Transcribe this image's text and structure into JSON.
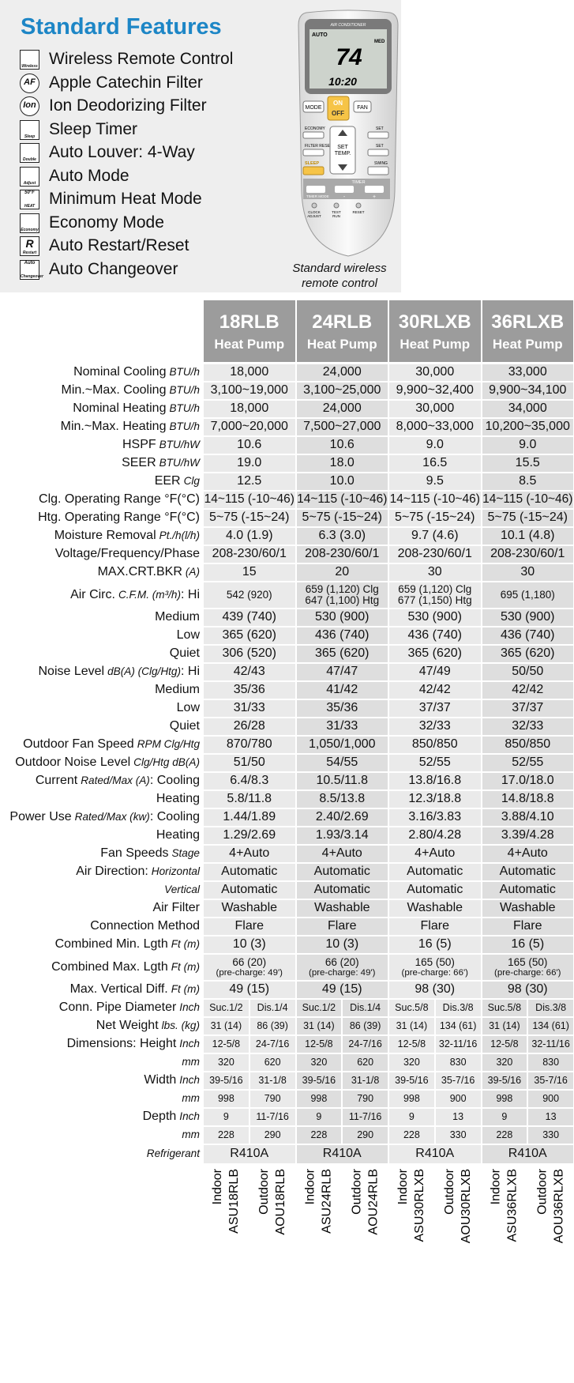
{
  "features": {
    "title": "Standard Features",
    "items": [
      {
        "label": "Wireless Remote Control",
        "icon": [
          "Wireless"
        ]
      },
      {
        "label": "Apple Catechin Filter",
        "icon": [
          "AF"
        ]
      },
      {
        "label": "Ion Deodorizing Filter",
        "icon": [
          "Ion"
        ]
      },
      {
        "label": "Sleep Timer",
        "icon": [
          "Sleep"
        ]
      },
      {
        "label": "Auto Louver: 4-Way",
        "icon": [
          "Double"
        ]
      },
      {
        "label": "Auto Mode",
        "icon": [
          "Adjust"
        ]
      },
      {
        "label": "Minimum Heat Mode",
        "icon": [
          "50°F",
          "HEAT"
        ]
      },
      {
        "label": "Economy Mode",
        "icon": [
          "Economy"
        ]
      },
      {
        "label": "Auto Restart/Reset",
        "icon": [
          "R",
          "Restart"
        ]
      },
      {
        "label": "Auto Changeover",
        "icon": [
          "Auto",
          "Changeover"
        ]
      }
    ]
  },
  "remote": {
    "brand": "AIR CONDITIONER",
    "display": {
      "mode": "AUTO",
      "temp": "74",
      "fan": "MED",
      "time": "10:20"
    },
    "mode": "MODE",
    "on": "ON",
    "off": "OFF",
    "fan": "FAN",
    "economy": "ECONOMY",
    "set1": "SET",
    "filter": "FILTER RESET",
    "set2": "SET",
    "settemp": [
      "SET",
      "TEMP."
    ],
    "sleep": "SLEEP",
    "swing": "SWING",
    "timer": "TIMER",
    "timermode": "TIMER MODE",
    "minus": "-",
    "plus": "+",
    "clock": [
      "CLOCK",
      "ADJUST"
    ],
    "test": [
      "TEST",
      "RUN"
    ],
    "reset": "RESET",
    "caption": [
      "Standard wireless",
      "remote control"
    ]
  },
  "table": {
    "models": [
      {
        "name": "18RLB",
        "type": "Heat Pump"
      },
      {
        "name": "24RLB",
        "type": "Heat Pump"
      },
      {
        "name": "30RLXB",
        "type": "Heat Pump"
      },
      {
        "name": "36RLXB",
        "type": "Heat Pump"
      }
    ],
    "rows": [
      {
        "label": "Nominal Cooling",
        "unit": "BTU/h",
        "values": [
          "18,000",
          "24,000",
          "30,000",
          "33,000"
        ]
      },
      {
        "label": "Min.~Max. Cooling",
        "unit": "BTU/h",
        "values": [
          "3,100~19,000",
          "3,100~25,000",
          "9,900~32,400",
          "9,900~34,100"
        ]
      },
      {
        "label": "Nominal Heating",
        "unit": "BTU/h",
        "values": [
          "18,000",
          "24,000",
          "30,000",
          "34,000"
        ]
      },
      {
        "label": "Min.~Max. Heating",
        "unit": "BTU/h",
        "values": [
          "7,000~20,000",
          "7,500~27,000",
          "8,000~33,000",
          "10,200~35,000"
        ]
      },
      {
        "label": "HSPF",
        "unit": "BTU/hW",
        "values": [
          "10.6",
          "10.6",
          "9.0",
          "9.0"
        ]
      },
      {
        "label": "SEER",
        "unit": "BTU/hW",
        "values": [
          "19.0",
          "18.0",
          "16.5",
          "15.5"
        ]
      },
      {
        "label": "EER",
        "unit": "Clg",
        "values": [
          "12.5",
          "10.0",
          "9.5",
          "8.5"
        ]
      },
      {
        "label": "Clg. Operating Range °F(°C)",
        "values": [
          "14~115 (-10~46)",
          "14~115 (-10~46)",
          "14~115 (-10~46)",
          "14~115 (-10~46)"
        ]
      },
      {
        "label": "Htg. Operating Range °F(°C)",
        "values": [
          "5~75 (-15~24)",
          "5~75 (-15~24)",
          "5~75 (-15~24)",
          "5~75 (-15~24)"
        ]
      },
      {
        "label": "Moisture Removal",
        "unit": "Pt./h(l/h)",
        "values": [
          "4.0 (1.9)",
          "6.3 (3.0)",
          "9.7 (4.6)",
          "10.1 (4.8)"
        ]
      },
      {
        "label": "Voltage/Frequency/Phase",
        "values": [
          "208-230/60/1",
          "208-230/60/1",
          "208-230/60/1",
          "208-230/60/1"
        ]
      },
      {
        "label": "MAX.CRT.BKR",
        "unit": "(A)",
        "values": [
          "15",
          "20",
          "30",
          "30"
        ]
      },
      {
        "label": "Air Circ.",
        "unit": "C.F.M. (m³/h)",
        "tail": ": Hi",
        "values": [
          "542 (920)",
          [
            "659 (1,120) Clg",
            "647 (1,100) Htg"
          ],
          [
            "659 (1,120) Clg",
            "677 (1,150) Htg"
          ],
          "695 (1,180)"
        ]
      },
      {
        "label": "Medium",
        "values": [
          "439 (740)",
          "530 (900)",
          "530 (900)",
          "530 (900)"
        ]
      },
      {
        "label": "Low",
        "values": [
          "365 (620)",
          "436 (740)",
          "436 (740)",
          "436 (740)"
        ]
      },
      {
        "label": "Quiet",
        "values": [
          "306 (520)",
          "365 (620)",
          "365 (620)",
          "365 (620)"
        ]
      },
      {
        "label": "Noise Level",
        "unit": "dB(A) (Clg/Htg)",
        "tail": ": Hi",
        "values": [
          "42/43",
          "47/47",
          "47/49",
          "50/50"
        ]
      },
      {
        "label": "Medium",
        "values": [
          "35/36",
          "41/42",
          "42/42",
          "42/42"
        ]
      },
      {
        "label": "Low",
        "values": [
          "31/33",
          "35/36",
          "37/37",
          "37/37"
        ]
      },
      {
        "label": "Quiet",
        "values": [
          "26/28",
          "31/33",
          "32/33",
          "32/33"
        ]
      },
      {
        "label": "Outdoor Fan Speed",
        "unit": "RPM Clg/Htg",
        "values": [
          "870/780",
          "1,050/1,000",
          "850/850",
          "850/850"
        ]
      },
      {
        "label": "Outdoor Noise Level",
        "unit": "Clg/Htg dB(A)",
        "values": [
          "51/50",
          "54/55",
          "52/55",
          "52/55"
        ]
      },
      {
        "label": "Current",
        "unit": "Rated/Max (A)",
        "tail": ": Cooling",
        "values": [
          "6.4/8.3",
          "10.5/11.8",
          "13.8/16.8",
          "17.0/18.0"
        ]
      },
      {
        "label": "Heating",
        "values": [
          "5.8/11.8",
          "8.5/13.8",
          "12.3/18.8",
          "14.8/18.8"
        ]
      },
      {
        "label": "Power Use",
        "unit": "Rated/Max (kw)",
        "tail": ": Cooling",
        "values": [
          "1.44/1.89",
          "2.40/2.69",
          "3.16/3.83",
          "3.88/4.10"
        ]
      },
      {
        "label": "Heating",
        "values": [
          "1.29/2.69",
          "1.93/3.14",
          "2.80/4.28",
          "3.39/4.28"
        ]
      },
      {
        "label": "Fan Speeds",
        "unit": "Stage",
        "values": [
          "4+Auto",
          "4+Auto",
          "4+Auto",
          "4+Auto"
        ]
      },
      {
        "label": "Air Direction:",
        "unit": "Horizontal",
        "values": [
          "Automatic",
          "Automatic",
          "Automatic",
          "Automatic"
        ]
      },
      {
        "unit": "Vertical",
        "values": [
          "Automatic",
          "Automatic",
          "Automatic",
          "Automatic"
        ]
      },
      {
        "label": "Air Filter",
        "values": [
          "Washable",
          "Washable",
          "Washable",
          "Washable"
        ]
      },
      {
        "label": "Connection Method",
        "values": [
          "Flare",
          "Flare",
          "Flare",
          "Flare"
        ]
      },
      {
        "label": "Combined Min. Lgth",
        "unit": "Ft (m)",
        "values": [
          "10 (3)",
          "10 (3)",
          "16 (5)",
          "16 (5)"
        ]
      },
      {
        "label": "Combined Max. Lgth",
        "unit": "Ft (m)",
        "values": [
          [
            "66 (20)",
            "(pre-charge: 49')"
          ],
          [
            "66 (20)",
            "(pre-charge: 49')"
          ],
          [
            "165 (50)",
            "(pre-charge: 66')"
          ],
          [
            "165 (50)",
            "(pre-charge: 66')"
          ]
        ]
      },
      {
        "label": "Max. Vertical Diff.",
        "unit": "Ft (m)",
        "values": [
          "49 (15)",
          "49 (15)",
          "98 (30)",
          "98 (30)"
        ]
      },
      {
        "label": "Conn. Pipe Diameter",
        "unit": "Inch",
        "values": [
          "Suc.1/2",
          "Dis.1/4",
          "Suc.1/2",
          "Dis.1/4",
          "Suc.5/8",
          "Dis.3/8",
          "Suc.5/8",
          "Dis.3/8"
        ]
      },
      {
        "label": "Net Weight",
        "unit": "lbs. (kg)",
        "values": [
          "31 (14)",
          "86 (39)",
          "31 (14)",
          "86 (39)",
          "31 (14)",
          "134 (61)",
          "31 (14)",
          "134 (61)"
        ]
      },
      {
        "label": "Dimensions: Height",
        "unit": "Inch",
        "values": [
          "12-5/8",
          "24-7/16",
          "12-5/8",
          "24-7/16",
          "12-5/8",
          "32-11/16",
          "12-5/8",
          "32-11/16"
        ]
      },
      {
        "unit": "mm",
        "values": [
          "320",
          "620",
          "320",
          "620",
          "320",
          "830",
          "320",
          "830"
        ]
      },
      {
        "label": "Width",
        "unit": "Inch",
        "values": [
          "39-5/16",
          "31-1/8",
          "39-5/16",
          "31-1/8",
          "39-5/16",
          "35-7/16",
          "39-5/16",
          "35-7/16"
        ]
      },
      {
        "unit": "mm",
        "values": [
          "998",
          "790",
          "998",
          "790",
          "998",
          "900",
          "998",
          "900"
        ]
      },
      {
        "label": "Depth",
        "unit": "Inch",
        "values": [
          "9",
          "11-7/16",
          "9",
          "11-7/16",
          "9",
          "13",
          "9",
          "13"
        ]
      },
      {
        "unit": "mm",
        "values": [
          "228",
          "290",
          "228",
          "290",
          "228",
          "330",
          "228",
          "330"
        ]
      },
      {
        "unit": "Refrigerant",
        "values": [
          "R410A",
          "R410A",
          "R410A",
          "R410A"
        ]
      }
    ],
    "units": [
      [
        "Indoor",
        "ASU18RLB"
      ],
      [
        "Outdoor",
        "AOU18RLB"
      ],
      [
        "Indoor",
        "ASU24RLB"
      ],
      [
        "Outdoor",
        "AOU24RLB"
      ],
      [
        "Indoor",
        "ASU30RLXB"
      ],
      [
        "Outdoor",
        "AOU30RLXB"
      ],
      [
        "Indoor",
        "ASU36RLXB"
      ],
      [
        "Outdoor",
        "AOU36RLXB"
      ]
    ]
  }
}
